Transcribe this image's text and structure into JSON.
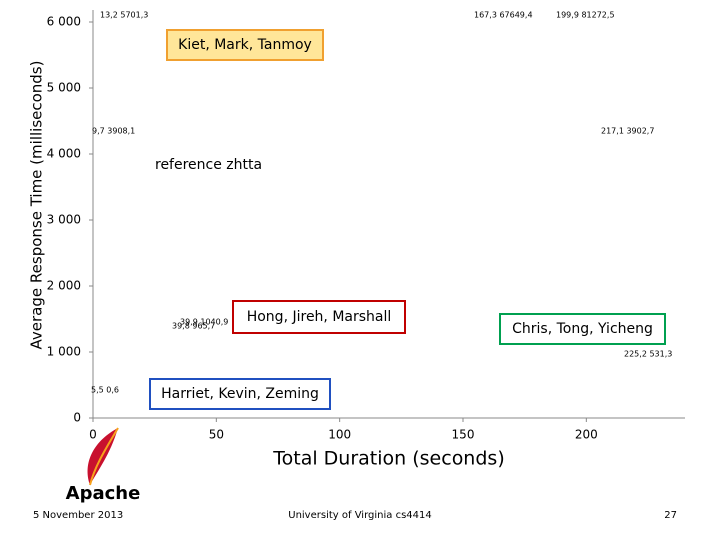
{
  "chart_data": {
    "type": "scatter",
    "ylabel": "Average Response Time (milliseconds)",
    "xlabel": "Total Duration (seconds)",
    "xlim": [
      0,
      240
    ],
    "xticks": [
      0,
      50,
      100,
      150,
      200
    ],
    "ylim": [
      0,
      6000
    ],
    "yticks": [
      0,
      {
        "value": 1000,
        "label": "1 000"
      },
      {
        "value": 2000,
        "label": "2 000"
      },
      {
        "value": 3000,
        "label": "3 000"
      },
      {
        "value": 4000,
        "label": "4 000"
      },
      {
        "value": 5000,
        "label": "5 000"
      },
      {
        "value": 6000,
        "label": "6 000"
      }
    ],
    "point_labels": [
      "13,2 5701,3",
      "167,3 67649,4",
      "199,9 81272,5",
      "9,7 3908,1",
      "217,1 3902,7",
      "39,9 1040,9",
      "39,8 965,7",
      "225,2 531,3",
      "5,5 0,6"
    ],
    "groups": [
      {
        "text": "Kiet, Mark, Tanmoy",
        "color": "#f0a030",
        "fill": "#ffe699"
      },
      {
        "text": "reference zhtta"
      },
      {
        "text": "Hong, Jireh, Marshall",
        "color": "#c00000",
        "fill": "#ffffff"
      },
      {
        "text": "Chris, Tong, Yicheng",
        "color": "#00a050",
        "fill": "#ffffff"
      },
      {
        "text": "Harriet, Kevin, Zeming",
        "color": "#2050c0",
        "fill": "#ffffff"
      }
    ]
  },
  "footer": {
    "logo": "Apache",
    "date": "5 November 2013",
    "source": "University of Virginia cs4414",
    "page": "27"
  }
}
